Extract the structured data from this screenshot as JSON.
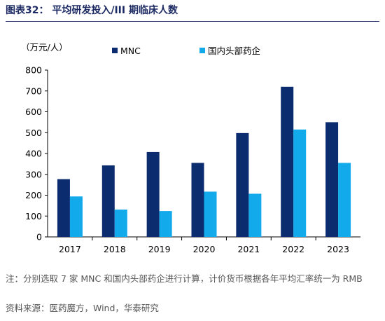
{
  "figure": {
    "title": "图表32：  平均研发投入/III 期临床人数"
  },
  "notes": {
    "note": "注：分别选取 7 家 MNC 和国内头部药企进行计算，计价货币根据各年平均汇率统一为 RMB",
    "source": "资料来源：医药魔方，Wind，华泰研究"
  },
  "chart_data": {
    "type": "bar",
    "unit_label": "（万元/人）",
    "categories": [
      "2017",
      "2018",
      "2019",
      "2020",
      "2021",
      "2022",
      "2023"
    ],
    "series": [
      {
        "name": "MNC",
        "color": "#0b2c6e",
        "values": [
          277,
          343,
          407,
          355,
          498,
          720,
          550
        ]
      },
      {
        "name": "国内头部药企",
        "color": "#12aaeb",
        "values": [
          194,
          131,
          124,
          217,
          207,
          515,
          355
        ]
      }
    ],
    "ylim": [
      0,
      800
    ],
    "yticks": [
      0,
      100,
      200,
      300,
      400,
      500,
      600,
      700,
      800
    ],
    "grid": false,
    "legend_position": "top"
  }
}
